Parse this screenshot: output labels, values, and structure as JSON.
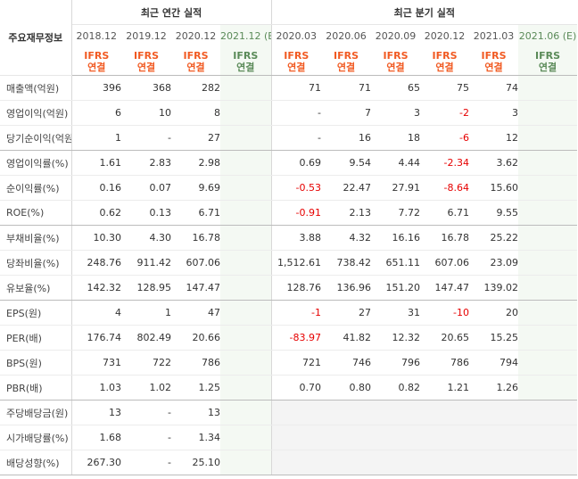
{
  "header": {
    "category_label": "주요재무정보",
    "annual_title": "최근 연간 실적",
    "quarter_title": "최근 분기 실적",
    "annual_periods": [
      "2018.12",
      "2019.12",
      "2020.12",
      "2021.12 (E)"
    ],
    "quarter_periods": [
      "2020.03",
      "2020.06",
      "2020.09",
      "2020.12",
      "2021.03",
      "2021.06 (E)"
    ],
    "ifrs_top": "IFRS",
    "ifrs_bottom": "연결"
  },
  "rows": [
    {
      "label": "매출액(억원)",
      "values": [
        "396",
        "368",
        "282",
        "",
        "71",
        "71",
        "65",
        "75",
        "74",
        ""
      ]
    },
    {
      "label": "영업이익(억원)",
      "values": [
        "6",
        "10",
        "8",
        "",
        "-",
        "7",
        "3",
        "-2",
        "3",
        ""
      ]
    },
    {
      "label": "당기순이익(억원)",
      "values": [
        "1",
        "-",
        "27",
        "",
        "-",
        "16",
        "18",
        "-6",
        "12",
        ""
      ]
    },
    {
      "label": "영업이익률(%)",
      "values": [
        "1.61",
        "2.83",
        "2.98",
        "",
        "0.69",
        "9.54",
        "4.44",
        "-2.34",
        "3.62",
        ""
      ]
    },
    {
      "label": "순이익률(%)",
      "values": [
        "0.16",
        "0.07",
        "9.69",
        "",
        "-0.53",
        "22.47",
        "27.91",
        "-8.64",
        "15.60",
        ""
      ]
    },
    {
      "label": "ROE(%)",
      "values": [
        "0.62",
        "0.13",
        "6.71",
        "",
        "-0.91",
        "2.13",
        "7.72",
        "6.71",
        "9.55",
        ""
      ]
    },
    {
      "label": "부채비율(%)",
      "values": [
        "10.30",
        "4.30",
        "16.78",
        "",
        "3.88",
        "4.32",
        "16.16",
        "16.78",
        "25.22",
        ""
      ]
    },
    {
      "label": "당좌비율(%)",
      "values": [
        "248.76",
        "911.42",
        "607.06",
        "",
        "1,512.61",
        "738.42",
        "651.11",
        "607.06",
        "23.09",
        ""
      ]
    },
    {
      "label": "유보율(%)",
      "values": [
        "142.32",
        "128.95",
        "147.47",
        "",
        "128.76",
        "136.96",
        "151.20",
        "147.47",
        "139.02",
        ""
      ]
    },
    {
      "label": "EPS(원)",
      "values": [
        "4",
        "1",
        "47",
        "",
        "-1",
        "27",
        "31",
        "-10",
        "20",
        ""
      ]
    },
    {
      "label": "PER(배)",
      "values": [
        "176.74",
        "802.49",
        "20.66",
        "",
        "-83.97",
        "41.82",
        "12.32",
        "20.65",
        "15.25",
        ""
      ]
    },
    {
      "label": "BPS(원)",
      "values": [
        "731",
        "722",
        "786",
        "",
        "721",
        "746",
        "796",
        "786",
        "794",
        ""
      ]
    },
    {
      "label": "PBR(배)",
      "values": [
        "1.03",
        "1.02",
        "1.25",
        "",
        "0.70",
        "0.80",
        "0.82",
        "1.21",
        "1.26",
        ""
      ]
    },
    {
      "label": "주당배당금(원)",
      "values": [
        "13",
        "-",
        "13",
        "",
        "",
        "",
        "",
        "",
        "",
        ""
      ]
    },
    {
      "label": "시가배당률(%)",
      "values": [
        "1.68",
        "-",
        "1.34",
        "",
        "",
        "",
        "",
        "",
        "",
        ""
      ]
    },
    {
      "label": "배당성향(%)",
      "values": [
        "267.30",
        "-",
        "25.10",
        "",
        "",
        "",
        "",
        "",
        "",
        ""
      ]
    }
  ],
  "colors": {
    "ifrs_orange": "#f15a22",
    "negative_red": "#e60000",
    "estimate_bg": "#f4f9f3",
    "na_bg": "#f4f4f4"
  }
}
